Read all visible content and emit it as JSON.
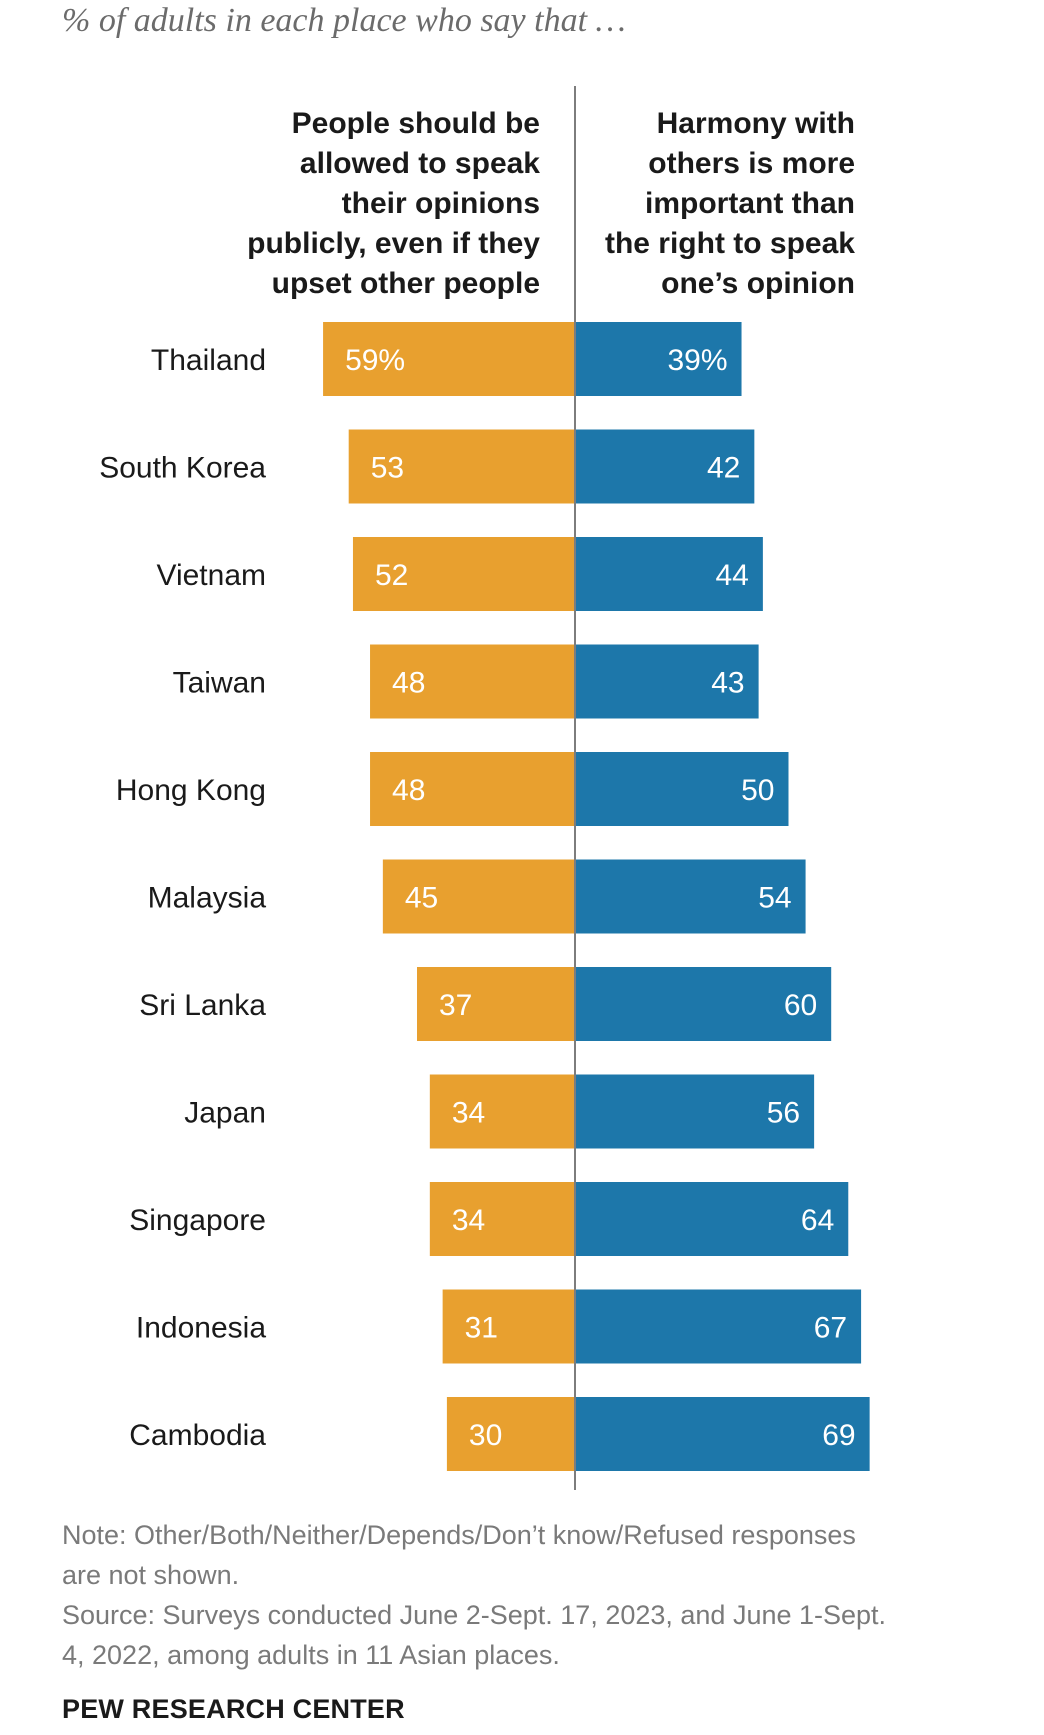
{
  "subtitle": "% of adults in each place who say that …",
  "headers": {
    "left": [
      "People should be",
      "allowed to speak",
      "their opinions",
      "publicly, even if they",
      "upset other people"
    ],
    "right": [
      "Harmony with",
      "others is more",
      "important than",
      "the right to speak",
      "one’s opinion"
    ]
  },
  "chart_data": {
    "type": "bar",
    "orientation": "horizontal-diverging",
    "categories": [
      "Thailand",
      "South Korea",
      "Vietnam",
      "Taiwan",
      "Hong Kong",
      "Malaysia",
      "Sri Lanka",
      "Japan",
      "Singapore",
      "Indonesia",
      "Cambodia"
    ],
    "series": [
      {
        "values": [
          59,
          53,
          52,
          48,
          48,
          45,
          37,
          34,
          34,
          31,
          30
        ],
        "labels": [
          "59%",
          "53",
          "52",
          "48",
          "48",
          "45",
          "37",
          "34",
          "34",
          "31",
          "30"
        ],
        "color": "#E8A02F"
      },
      {
        "values": [
          39,
          42,
          44,
          43,
          50,
          54,
          60,
          56,
          64,
          67,
          69
        ],
        "labels": [
          "39%",
          "42",
          "44",
          "43",
          "50",
          "54",
          "60",
          "56",
          "64",
          "67",
          "69"
        ],
        "color": "#1D77AA"
      }
    ],
    "axis_color": "#7d7d7d"
  },
  "note": [
    "Note: Other/Both/Neither/Depends/Don’t know/Refused responses",
    "are not shown.",
    "Source: Surveys conducted June 2-Sept. 17, 2023, and June 1-Sept.",
    "4, 2022, among adults in 11 Asian places."
  ],
  "brand": "PEW RESEARCH CENTER"
}
